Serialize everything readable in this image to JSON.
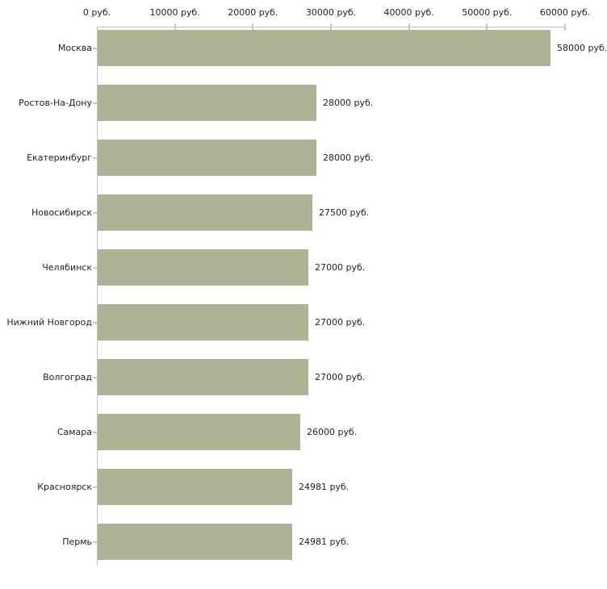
{
  "chart_data": {
    "type": "bar",
    "orientation": "horizontal",
    "title": "",
    "xlabel": "",
    "ylabel": "",
    "categories": [
      "Москва",
      "Ростов-На-Дону",
      "Екатеринбург",
      "Новосибирск",
      "Челябинск",
      "Нижний Новгород",
      "Волгоград",
      "Самара",
      "Красноярск",
      "Пермь"
    ],
    "values": [
      58000,
      28000,
      28000,
      27500,
      27000,
      27000,
      27000,
      26000,
      24981,
      24981
    ],
    "value_labels": [
      "58000 руб.",
      "28000 руб.",
      "28000 руб.",
      "27500 руб.",
      "27000 руб.",
      "27000 руб.",
      "27000 руб.",
      "26000 руб.",
      "24981 руб.",
      "24981 руб."
    ],
    "xlim": [
      0,
      60000
    ],
    "x_ticks": [
      0,
      10000,
      20000,
      30000,
      40000,
      50000,
      60000
    ],
    "x_tick_labels": [
      "0 руб.",
      "10000 руб.",
      "20000 руб.",
      "30000 руб.",
      "40000 руб.",
      "50000 руб.",
      "60000 руб."
    ],
    "grid": false,
    "legend": null,
    "colors": {
      "bar": "#adb496",
      "axis_line": "#c0c0c0",
      "tick_mark": "#cccc99",
      "text": "#222222",
      "background": "#ffffff"
    }
  }
}
